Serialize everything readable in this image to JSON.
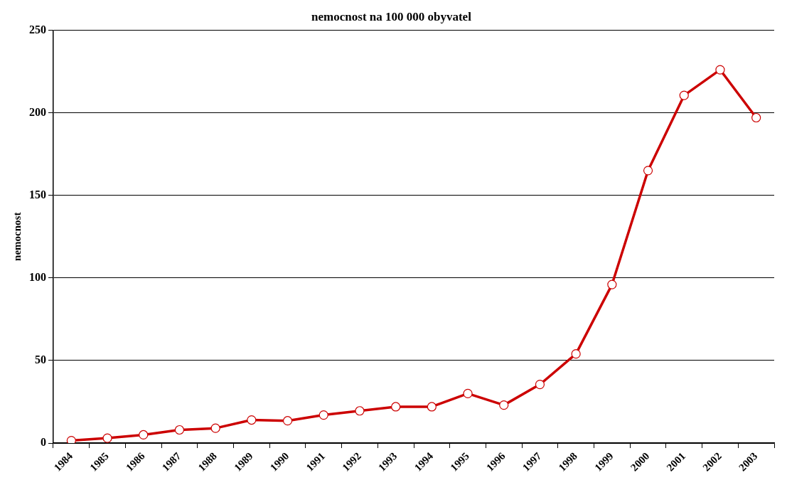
{
  "chart_data": {
    "type": "line",
    "title": "nemocnost na 100 000 obyvatel",
    "ylabel": "nemocnost",
    "categories": [
      "1984",
      "1985",
      "1986",
      "1987",
      "1988",
      "1989",
      "1990",
      "1991",
      "1992",
      "1993",
      "1994",
      "1995",
      "1996",
      "1997",
      "1998",
      "1999",
      "2000",
      "2001",
      "2002",
      "2003"
    ],
    "series": [
      {
        "color": "#cc0000",
        "values": [
          1.5,
          3,
          5,
          8,
          9,
          14,
          13.5,
          17,
          19.5,
          22,
          22,
          30,
          23,
          35.5,
          54,
          96,
          165,
          210.5,
          226,
          197
        ]
      }
    ],
    "ylim": [
      0,
      250
    ],
    "yticks": [
      0,
      50,
      100,
      150,
      200,
      250
    ],
    "grid": "y",
    "legend": false,
    "marker": "circle",
    "line_style": "solid"
  }
}
